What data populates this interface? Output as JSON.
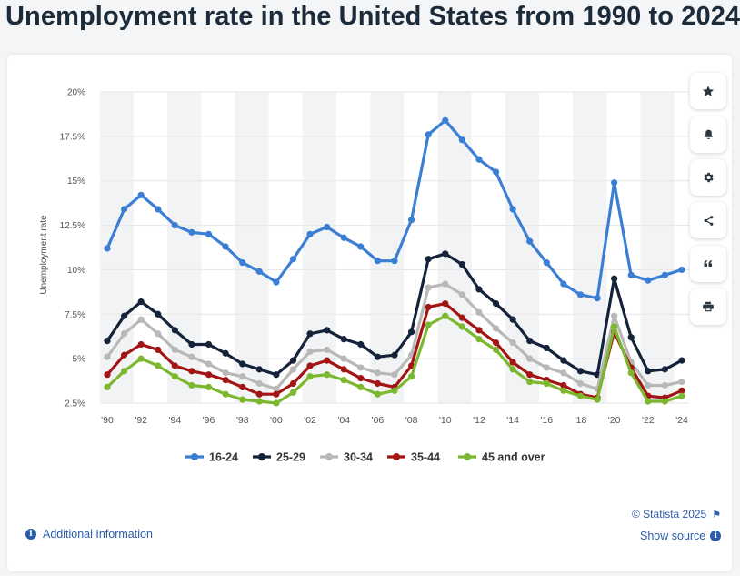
{
  "title": "Unemployment rate in the United States from 1990 to 2024",
  "footer": {
    "additional_info": "Additional Information",
    "copyright": "© Statista 2025",
    "show_source": "Show source"
  },
  "side_buttons": [
    {
      "icon": "star-icon"
    },
    {
      "icon": "bell-icon"
    },
    {
      "icon": "gear-icon"
    },
    {
      "icon": "share-icon"
    },
    {
      "icon": "quote-icon"
    },
    {
      "icon": "print-icon"
    }
  ],
  "chart_data": {
    "type": "line",
    "ylabel": "Unemployment rate",
    "ylim": [
      2.5,
      20
    ],
    "yticks": [
      2.5,
      5,
      7.5,
      10,
      12.5,
      15,
      17.5,
      20
    ],
    "ytick_labels": [
      "2.5%",
      "5%",
      "7.5%",
      "10%",
      "12.5%",
      "15%",
      "17.5%",
      "20%"
    ],
    "xtick_labels": [
      "'90",
      "'92",
      "'94",
      "'96",
      "'98",
      "'00",
      "'02",
      "'04",
      "'06",
      "'08",
      "'10",
      "'12",
      "'14",
      "'16",
      "'18",
      "'20",
      "'22",
      "'24"
    ],
    "x": [
      1990,
      1991,
      1992,
      1993,
      1994,
      1995,
      1996,
      1997,
      1998,
      1999,
      2000,
      2001,
      2002,
      2003,
      2004,
      2005,
      2006,
      2007,
      2008,
      2009,
      2010,
      2011,
      2012,
      2013,
      2014,
      2015,
      2016,
      2017,
      2018,
      2019,
      2020,
      2021,
      2022,
      2023,
      2024
    ],
    "legend_position": "bottom",
    "grid": "alternating vertical bands",
    "series": [
      {
        "name": "16-24",
        "color": "#3b7fd4",
        "values": [
          11.2,
          13.4,
          14.2,
          13.4,
          12.5,
          12.1,
          12.0,
          11.3,
          10.4,
          9.9,
          9.3,
          10.6,
          12.0,
          12.4,
          11.8,
          11.3,
          10.5,
          10.5,
          12.8,
          17.6,
          18.4,
          17.3,
          16.2,
          15.5,
          13.4,
          11.6,
          10.4,
          9.2,
          8.6,
          8.4,
          14.9,
          9.7,
          9.4,
          9.7,
          10.0
        ]
      },
      {
        "name": "25-29",
        "color": "#14233a",
        "values": [
          6.0,
          7.4,
          8.2,
          7.5,
          6.6,
          5.8,
          5.8,
          5.3,
          4.7,
          4.4,
          4.1,
          4.9,
          6.4,
          6.6,
          6.1,
          5.8,
          5.1,
          5.2,
          6.5,
          10.6,
          10.9,
          10.3,
          8.9,
          8.1,
          7.2,
          6.0,
          5.6,
          4.9,
          4.3,
          4.1,
          9.5,
          6.2,
          4.3,
          4.4,
          4.9
        ]
      },
      {
        "name": "30-34",
        "color": "#b8b8b8",
        "values": [
          5.1,
          6.4,
          7.2,
          6.4,
          5.5,
          5.1,
          4.7,
          4.2,
          4.0,
          3.6,
          3.3,
          4.4,
          5.4,
          5.5,
          5.0,
          4.5,
          4.2,
          4.1,
          5.2,
          9.0,
          9.2,
          8.6,
          7.6,
          6.7,
          5.9,
          5.0,
          4.5,
          4.2,
          3.6,
          3.3,
          7.4,
          4.8,
          3.5,
          3.5,
          3.7
        ]
      },
      {
        "name": "35-44",
        "color": "#a31515",
        "values": [
          4.1,
          5.2,
          5.8,
          5.5,
          4.6,
          4.3,
          4.1,
          3.8,
          3.4,
          3.0,
          3.0,
          3.6,
          4.6,
          4.9,
          4.4,
          3.9,
          3.6,
          3.4,
          4.6,
          7.9,
          8.1,
          7.3,
          6.6,
          5.9,
          4.8,
          4.1,
          3.8,
          3.5,
          3.0,
          2.8,
          6.5,
          4.5,
          2.9,
          2.8,
          3.2
        ]
      },
      {
        "name": "45 and over",
        "color": "#7cb82f",
        "values": [
          3.4,
          4.3,
          5.0,
          4.6,
          4.0,
          3.5,
          3.4,
          3.0,
          2.7,
          2.6,
          2.5,
          3.1,
          4.0,
          4.1,
          3.8,
          3.4,
          3.0,
          3.2,
          4.0,
          6.9,
          7.4,
          6.8,
          6.1,
          5.5,
          4.4,
          3.7,
          3.6,
          3.2,
          2.9,
          2.7,
          6.8,
          4.2,
          2.6,
          2.6,
          2.9
        ]
      }
    ]
  }
}
